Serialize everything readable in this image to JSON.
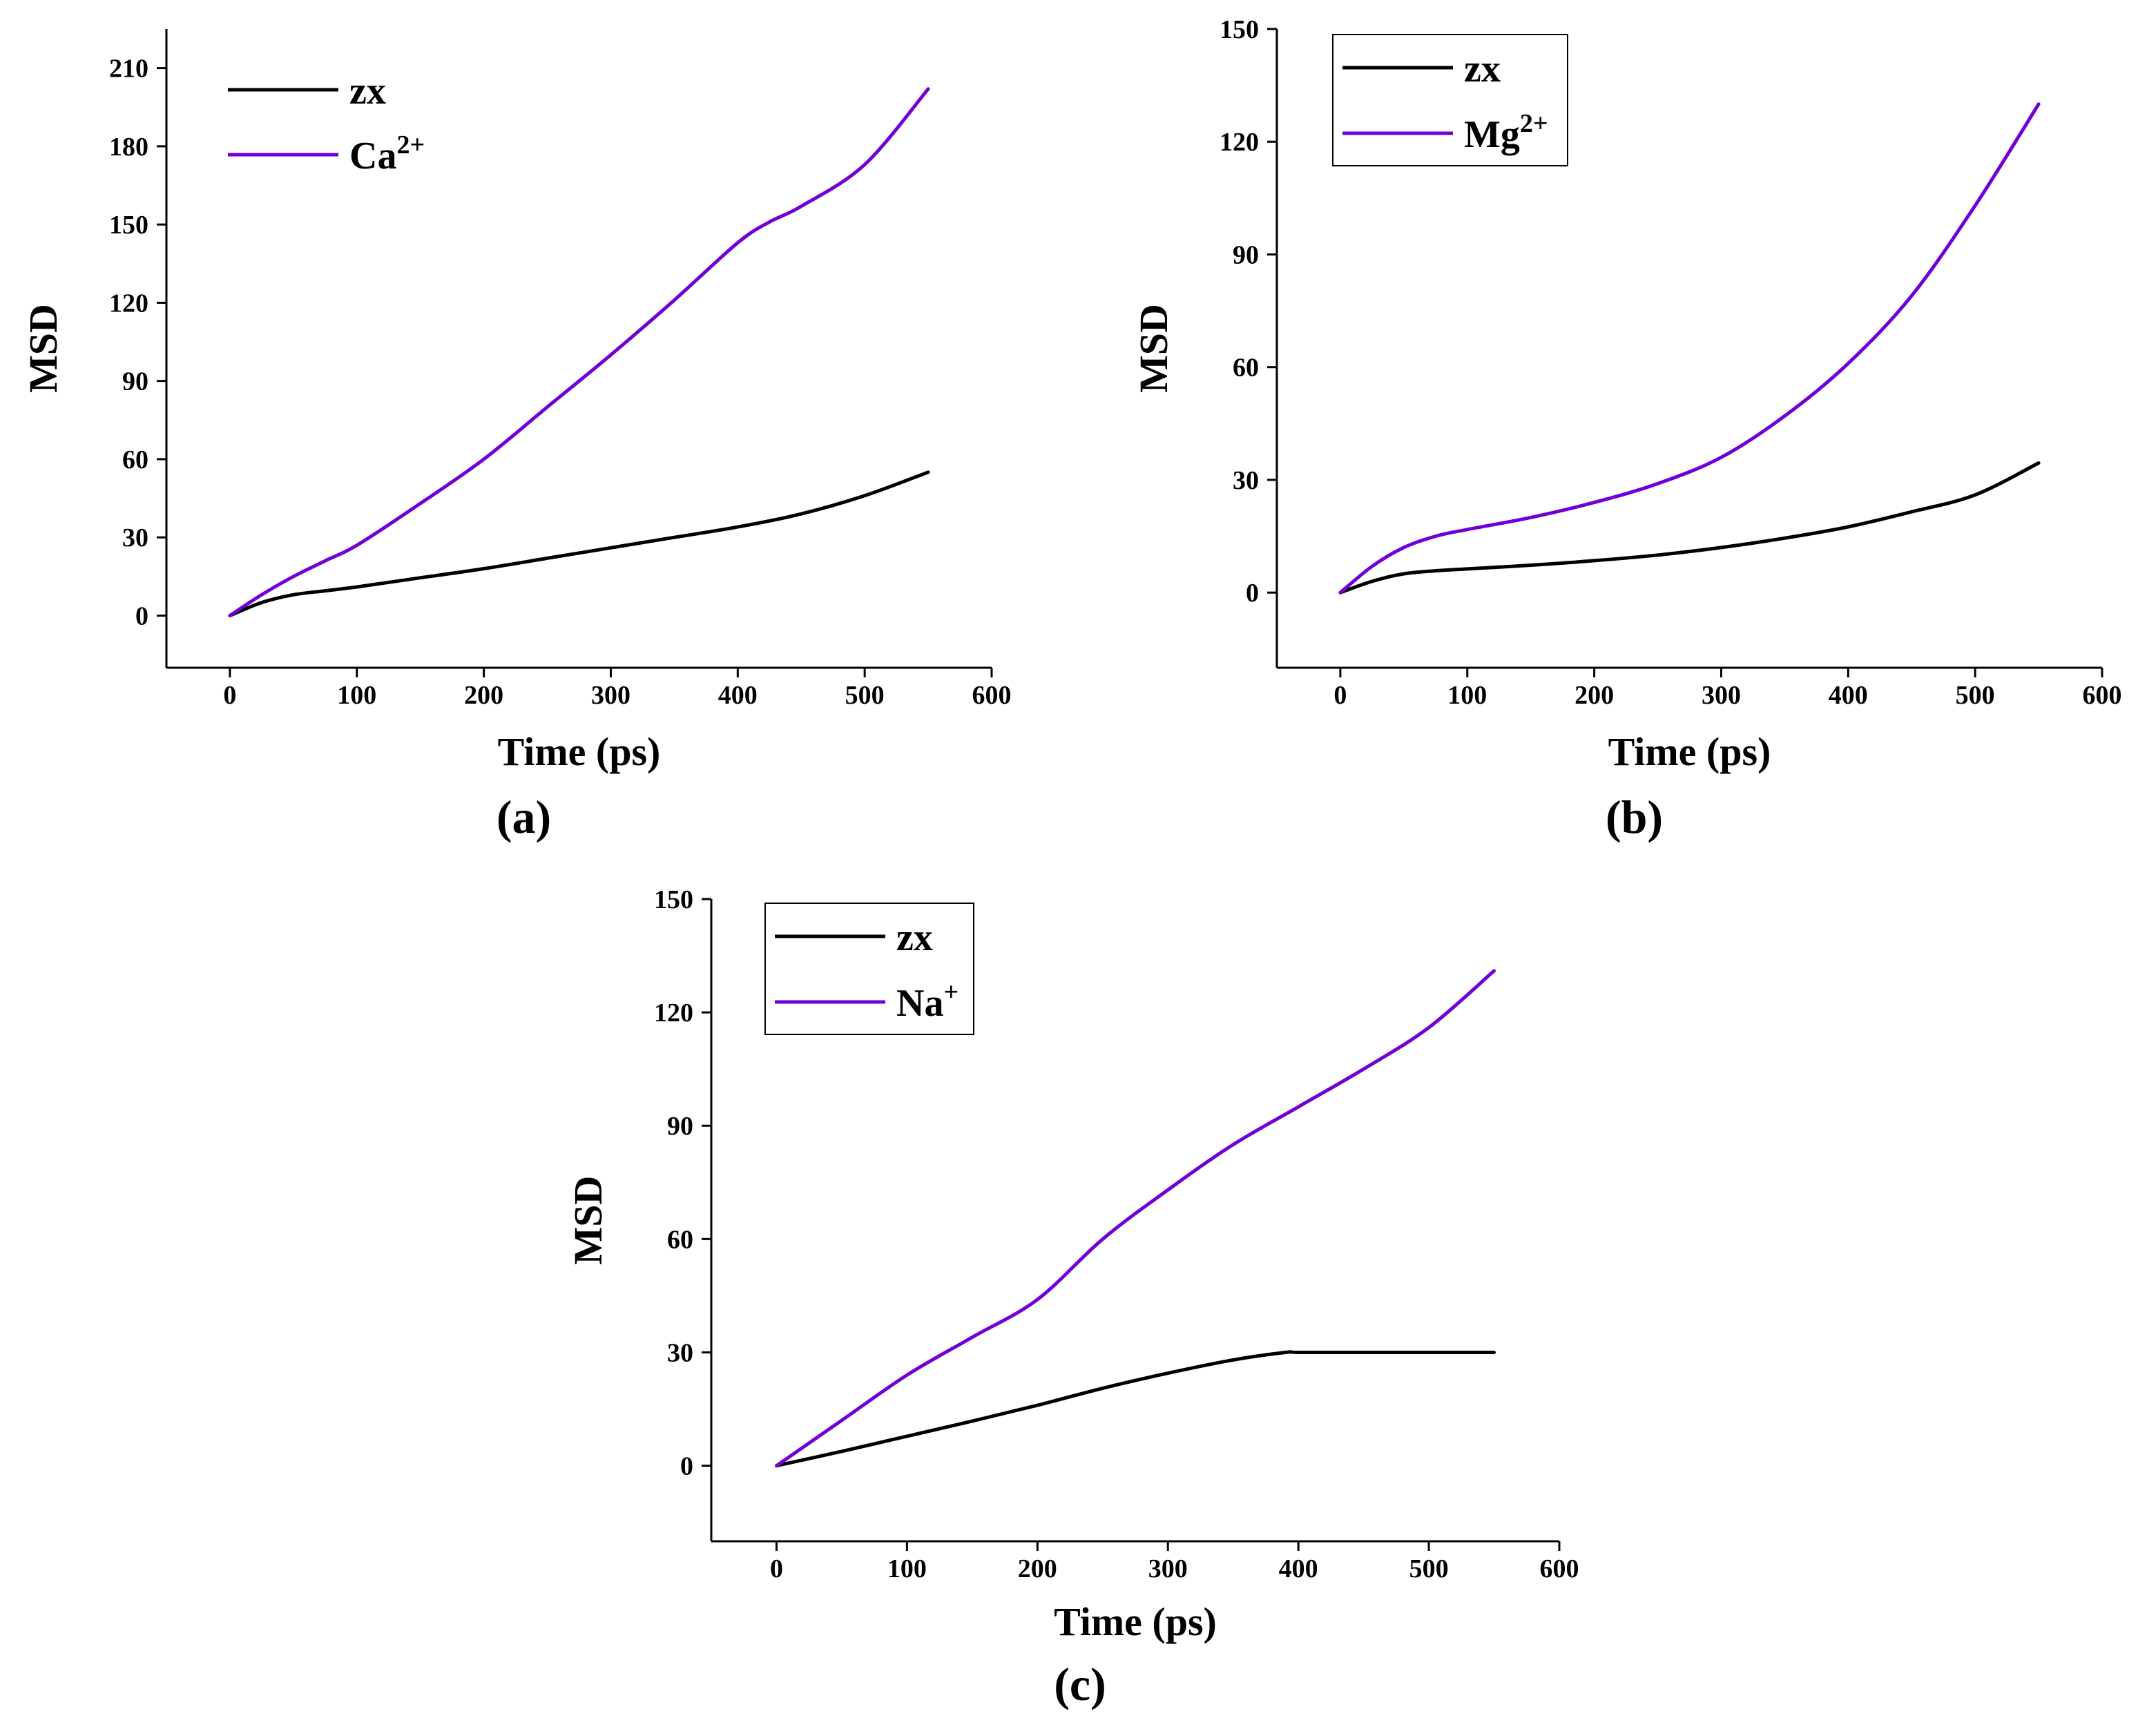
{
  "colors": {
    "zx": "#000000",
    "ion": "#7000D6",
    "axis": "#000000",
    "background": "#ffffff"
  },
  "chart_data": [
    {
      "type": "line",
      "panel_label": "(a)",
      "xlabel": "Time (ps)",
      "ylabel": "MSD",
      "xlim": [
        -50,
        600
      ],
      "ylim": [
        -20,
        225
      ],
      "xticks": [
        0,
        100,
        200,
        300,
        400,
        500,
        600
      ],
      "yticks": [
        0,
        30,
        60,
        90,
        120,
        150,
        180,
        210
      ],
      "grid": false,
      "legend_position": "top-left",
      "legend_boxed": false,
      "series": [
        {
          "name": "zx",
          "legend_base": "zx",
          "legend_sup": "",
          "color_key": "zx",
          "x": [
            0,
            25,
            50,
            75,
            100,
            150,
            200,
            250,
            300,
            350,
            400,
            450,
            500,
            550
          ],
          "y": [
            0,
            5,
            8,
            9.5,
            11,
            14.5,
            18,
            22,
            26,
            30,
            34,
            39,
            46,
            55
          ]
        },
        {
          "name": "Ca2+",
          "legend_base": "Ca",
          "legend_sup": "2+",
          "color_key": "ion",
          "x": [
            0,
            25,
            50,
            75,
            100,
            150,
            200,
            250,
            300,
            350,
            400,
            425,
            450,
            500,
            550
          ],
          "y": [
            0,
            8,
            15,
            21,
            27,
            43,
            60,
            80,
            100,
            121,
            143,
            151,
            157,
            173,
            202
          ]
        }
      ]
    },
    {
      "type": "line",
      "panel_label": "(b)",
      "xlabel": "Time (ps)",
      "ylabel": "MSD",
      "xlim": [
        -50,
        600
      ],
      "ylim": [
        -20,
        150
      ],
      "xticks": [
        0,
        100,
        200,
        300,
        400,
        500,
        600
      ],
      "yticks": [
        0,
        30,
        60,
        90,
        120,
        150
      ],
      "grid": false,
      "legend_position": "top-left",
      "legend_boxed": true,
      "series": [
        {
          "name": "zx",
          "legend_base": "zx",
          "legend_sup": "",
          "color_key": "zx",
          "x": [
            0,
            25,
            50,
            75,
            100,
            150,
            200,
            250,
            300,
            350,
            400,
            450,
            500,
            550
          ],
          "y": [
            0,
            3,
            5,
            5.8,
            6.3,
            7.3,
            8.5,
            10,
            12,
            14.5,
            17.5,
            21.5,
            26,
            34.5
          ]
        },
        {
          "name": "Mg2+",
          "legend_base": "Mg",
          "legend_sup": "2+",
          "color_key": "ion",
          "x": [
            0,
            25,
            50,
            75,
            100,
            150,
            200,
            250,
            300,
            350,
            400,
            450,
            500,
            550
          ],
          "y": [
            0,
            7,
            12,
            15,
            16.8,
            20,
            24,
            29,
            36,
            47,
            61,
            79,
            103,
            130
          ]
        }
      ]
    },
    {
      "type": "line",
      "panel_label": "(c)",
      "xlabel": "Time (ps)",
      "ylabel": "MSD",
      "xlim": [
        -50,
        600
      ],
      "ylim": [
        -20,
        150
      ],
      "xticks": [
        0,
        100,
        200,
        300,
        400,
        500,
        600
      ],
      "yticks": [
        0,
        30,
        60,
        90,
        120,
        150
      ],
      "grid": false,
      "legend_position": "top-left",
      "legend_boxed": true,
      "series": [
        {
          "name": "zx",
          "legend_base": "zx",
          "legend_sup": "",
          "color_key": "zx",
          "x": [
            0,
            50,
            100,
            150,
            200,
            250,
            300,
            350,
            390,
            400,
            450,
            500,
            550
          ],
          "y": [
            0,
            3.8,
            7.8,
            11.8,
            16,
            20.5,
            24.5,
            28,
            30,
            30,
            30,
            30,
            30
          ]
        },
        {
          "name": "Na+",
          "legend_base": "Na",
          "legend_sup": "+",
          "color_key": "ion",
          "x": [
            0,
            50,
            100,
            150,
            200,
            250,
            300,
            350,
            400,
            450,
            500,
            550
          ],
          "y": [
            0,
            12,
            24,
            34,
            44,
            60,
            73,
            85,
            95,
            105,
            116,
            131
          ]
        }
      ]
    }
  ]
}
